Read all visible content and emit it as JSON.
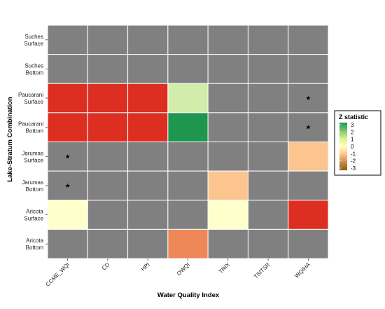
{
  "chart_data": {
    "type": "heatmap",
    "xlabel": "Water Quality Index",
    "ylabel": "Lake-Stratum Combination",
    "x_categories": [
      "CCME_WQI",
      "CD",
      "HPI",
      "OWQI",
      "TRIX",
      "TSITSR",
      "WQIHA"
    ],
    "y_categories": [
      [
        "Suches",
        "Surface"
      ],
      [
        "Suches",
        "Bottom"
      ],
      [
        "Paucarani",
        "Surface"
      ],
      [
        "Paucarani",
        "Bottom"
      ],
      [
        "Jarumas",
        "Surface"
      ],
      [
        "Jarumas",
        "Bottom"
      ],
      [
        "Aricota",
        "Surface"
      ],
      [
        "Aricota",
        "Bottom"
      ]
    ],
    "values": [
      [
        null,
        null,
        null,
        null,
        null,
        null,
        null
      ],
      [
        null,
        null,
        null,
        null,
        null,
        null,
        null
      ],
      [
        3,
        3,
        3,
        1,
        null,
        null,
        null
      ],
      [
        3,
        3,
        3,
        2.6,
        null,
        null,
        null
      ],
      [
        null,
        null,
        null,
        null,
        null,
        null,
        -1
      ],
      [
        null,
        null,
        null,
        null,
        -1,
        null,
        null
      ],
      [
        0,
        null,
        null,
        null,
        0,
        null,
        3
      ],
      [
        null,
        null,
        null,
        -2,
        null,
        null,
        null
      ]
    ],
    "significance": [
      [
        false,
        false,
        false,
        false,
        false,
        false,
        false
      ],
      [
        false,
        false,
        false,
        false,
        false,
        false,
        false
      ],
      [
        false,
        false,
        false,
        false,
        false,
        false,
        true
      ],
      [
        false,
        false,
        false,
        false,
        false,
        false,
        true
      ],
      [
        true,
        false,
        false,
        false,
        false,
        false,
        false
      ],
      [
        true,
        false,
        false,
        false,
        false,
        false,
        false
      ],
      [
        false,
        false,
        false,
        false,
        false,
        false,
        false
      ],
      [
        false,
        false,
        false,
        false,
        false,
        false,
        false
      ]
    ],
    "significance_marker": "★",
    "missing_color": "#808080",
    "legend": {
      "title": "Z statistic",
      "ticks": [
        "3",
        "2",
        "1",
        "0",
        "-1",
        "-2",
        "-3"
      ],
      "range": [
        -3,
        3
      ],
      "position": "right"
    },
    "grid": false
  }
}
